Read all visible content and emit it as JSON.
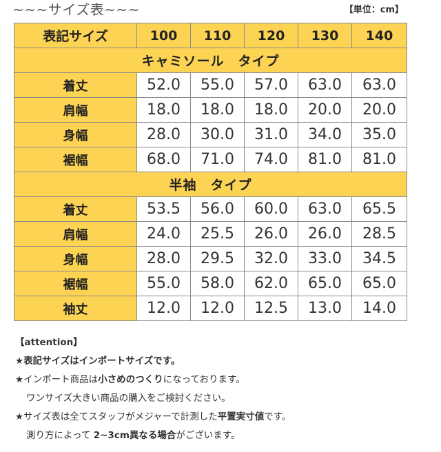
{
  "title": "~~~サイズ表~~~",
  "unit": "【単位：cm】",
  "table": {
    "corner_label": "表記サイズ",
    "sizes": [
      "100",
      "110",
      "120",
      "130",
      "140"
    ],
    "sections": [
      {
        "name": "キャミソール　タイプ",
        "rows": [
          {
            "label": "着丈",
            "values": [
              "52.0",
              "55.0",
              "57.0",
              "63.0",
              "63.0"
            ]
          },
          {
            "label": "肩幅",
            "values": [
              "18.0",
              "18.0",
              "18.0",
              "20.0",
              "20.0"
            ]
          },
          {
            "label": "身幅",
            "values": [
              "28.0",
              "30.0",
              "31.0",
              "34.0",
              "35.0"
            ]
          },
          {
            "label": "裾幅",
            "values": [
              "68.0",
              "71.0",
              "74.0",
              "81.0",
              "81.0"
            ]
          }
        ]
      },
      {
        "name": "半袖　タイプ",
        "rows": [
          {
            "label": "着丈",
            "values": [
              "53.5",
              "56.0",
              "60.0",
              "63.0",
              "65.5"
            ]
          },
          {
            "label": "肩幅",
            "values": [
              "24.0",
              "25.5",
              "26.0",
              "26.0",
              "28.5"
            ]
          },
          {
            "label": "身幅",
            "values": [
              "28.0",
              "29.5",
              "32.0",
              "33.0",
              "34.5"
            ]
          },
          {
            "label": "裾幅",
            "values": [
              "55.0",
              "58.0",
              "62.0",
              "65.0",
              "65.0"
            ]
          },
          {
            "label": "袖丈",
            "values": [
              "12.0",
              "12.0",
              "12.5",
              "13.0",
              "14.0"
            ]
          }
        ]
      }
    ]
  },
  "notes": {
    "attention": "【attention】",
    "line1": "★表記サイズはインポートサイズです。",
    "line2": {
      "a": "★インポート商品は",
      "b": "小さめのつくり",
      "c": "になっております。"
    },
    "line3": "ワンサイズ大きい商品の購入をご検討ください。",
    "line4": {
      "a": "★サイズ表は全てスタッフがメジャーで計測した",
      "b": "平置実寸値",
      "c": "です。"
    },
    "line5": {
      "a": "測り方によって ",
      "b": "2~3cm異なる場合",
      "c": "がございます。"
    }
  },
  "colors": {
    "header_bg": "#fcd353",
    "border": "#8a8a8a"
  }
}
